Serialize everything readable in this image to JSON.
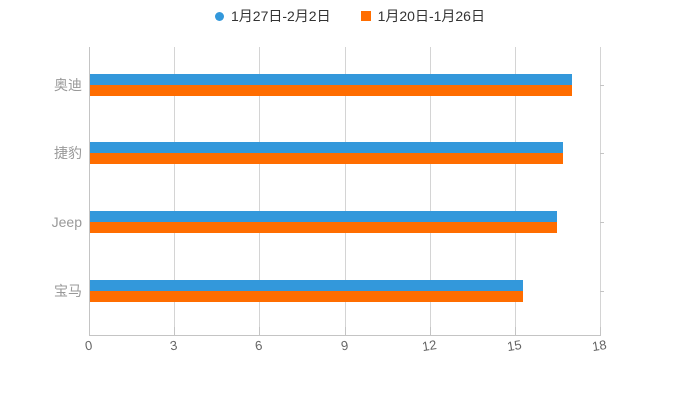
{
  "legend": {
    "items": [
      {
        "key": "week-jan27-feb2",
        "label": "1月27日-2月2日",
        "marker": "circle",
        "color": "#3398db"
      },
      {
        "key": "week-jan20-jan26",
        "label": "1月20日-1月26日",
        "marker": "square",
        "color": "#ff6d00"
      }
    ]
  },
  "chart_data": {
    "type": "bar",
    "orientation": "horizontal",
    "title": "",
    "xlabel": "",
    "ylabel": "",
    "categories": [
      "奥迪",
      "捷豹",
      "Jeep",
      "宝马"
    ],
    "category_keys": [
      "aodi",
      "jiebao",
      "jeep",
      "baoma"
    ],
    "series": [
      {
        "name": "1月27日-2月2日",
        "key": "week-jan27-feb2",
        "color": "#3398db",
        "values": [
          17.0,
          16.7,
          16.5,
          15.3
        ]
      },
      {
        "name": "1月20日-1月26日",
        "key": "week-jan20-jan26",
        "color": "#ff6d00",
        "values": [
          17.0,
          16.7,
          16.5,
          15.3
        ]
      }
    ],
    "x_axis": {
      "min": 0,
      "max": 18,
      "ticks": [
        0,
        3,
        6,
        9,
        12,
        15,
        18
      ],
      "tick_labels": [
        "0",
        "3",
        "6",
        "9",
        "12",
        "15",
        "18"
      ]
    },
    "grid": true,
    "legend_position": "top-center"
  },
  "colors": {
    "background": "#ffffff",
    "gridline": "#d4d4d4",
    "axis_line": "#c4c4c4",
    "tick": "#c4c4c4",
    "legend_text": "#333333",
    "category_text": "#999999",
    "tick_text": "#666666"
  }
}
